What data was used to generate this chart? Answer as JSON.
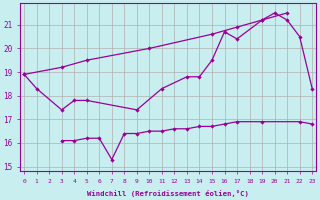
{
  "xlabel": "Windchill (Refroidissement éolien,°C)",
  "background_color": "#c8eef0",
  "grid_color": "#b0b0b0",
  "line_color": "#990099",
  "ylim_min": 14.8,
  "ylim_max": 21.9,
  "xlim_min": -0.3,
  "xlim_max": 23.3,
  "yticks": [
    15,
    16,
    17,
    18,
    19,
    20,
    21
  ],
  "xticks": [
    0,
    1,
    2,
    3,
    4,
    5,
    6,
    7,
    8,
    9,
    10,
    11,
    12,
    13,
    14,
    15,
    16,
    17,
    18,
    19,
    20,
    21,
    22,
    23
  ],
  "line1_x": [
    0,
    1,
    3,
    4,
    5,
    9,
    11,
    13,
    14,
    15,
    16,
    17,
    19,
    20,
    21,
    22,
    23
  ],
  "line1_y": [
    18.9,
    18.3,
    17.4,
    17.8,
    17.8,
    17.4,
    18.3,
    18.8,
    18.8,
    19.5,
    20.7,
    20.4,
    21.2,
    21.5,
    21.2,
    20.5,
    18.3
  ],
  "line2_x": [
    0,
    3,
    5,
    10,
    15,
    17,
    19,
    21
  ],
  "line2_y": [
    18.9,
    19.2,
    19.5,
    20.0,
    20.6,
    20.9,
    21.2,
    21.5
  ],
  "line3_x": [
    3,
    4,
    5,
    6,
    7,
    8,
    9,
    10,
    11,
    12,
    13,
    14,
    15,
    16,
    17,
    19,
    22,
    23
  ],
  "line3_y": [
    16.1,
    16.1,
    16.2,
    16.2,
    15.3,
    16.4,
    16.4,
    16.5,
    16.5,
    16.6,
    16.6,
    16.7,
    16.7,
    16.8,
    16.9,
    16.9,
    16.9,
    16.8
  ],
  "figsize": [
    3.2,
    2.0
  ],
  "dpi": 100
}
